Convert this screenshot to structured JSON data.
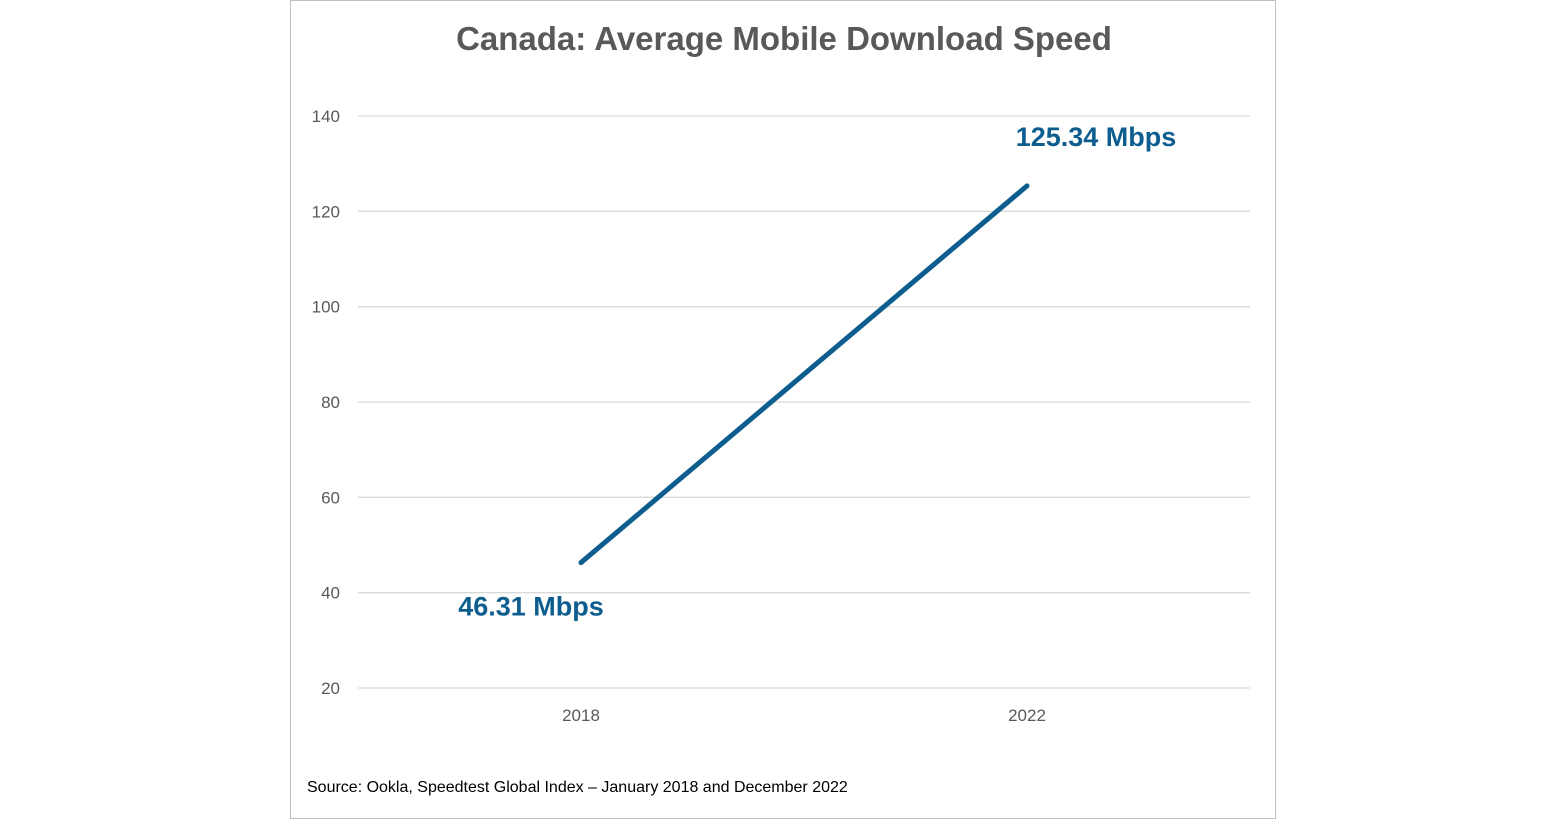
{
  "chart_data": {
    "type": "line",
    "title": "Canada: Average Mobile Download Speed",
    "categories": [
      "2018",
      "2022"
    ],
    "series": [
      {
        "values": [
          46.31,
          125.34
        ],
        "color": "#0d5e8e"
      }
    ],
    "data_labels": [
      "46.31 Mbps",
      "125.34 Mbps"
    ],
    "xlabel": "",
    "ylabel": "",
    "ylim": [
      20,
      140
    ],
    "yticks": [
      20,
      40,
      60,
      80,
      100,
      120,
      140
    ],
    "grid": true,
    "legend": "none",
    "source": "Source: Ookla, Speedtest Global Index – January 2018 and December 2022"
  }
}
